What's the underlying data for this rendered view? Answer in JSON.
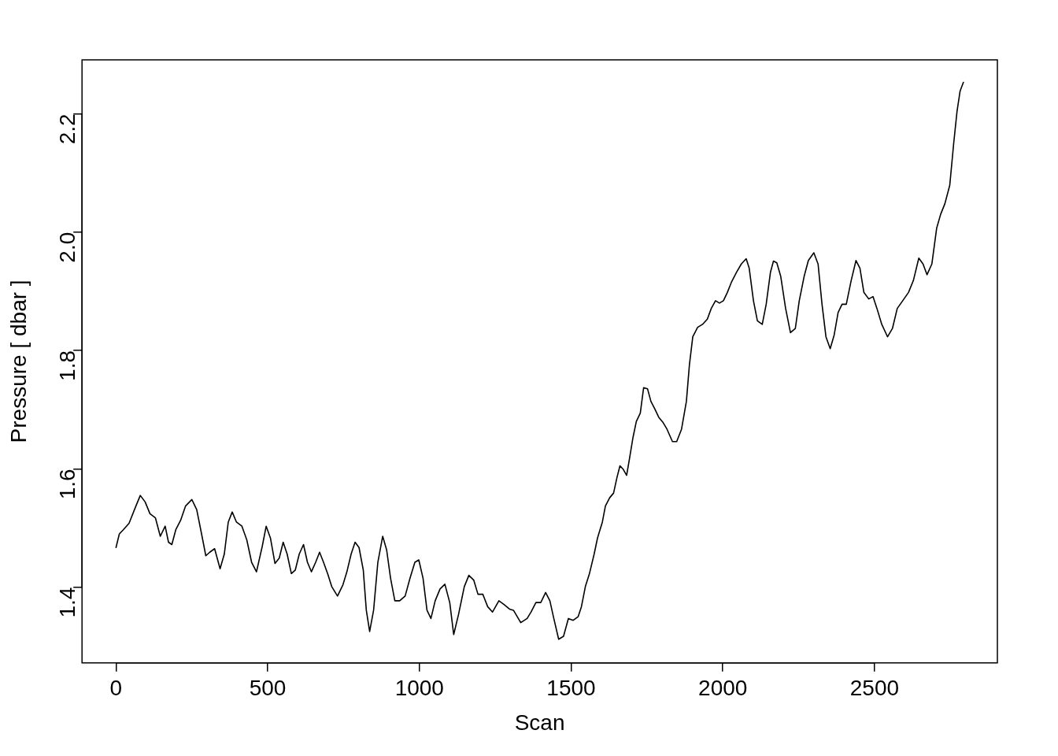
{
  "chart_data": {
    "type": "line",
    "xlabel": "Scan",
    "ylabel": "Pressure [ dbar ]",
    "color": "#000000",
    "marker": "none",
    "line_style": "solid",
    "grid": false,
    "legend": false,
    "x": [
      0,
      11,
      24,
      43,
      64,
      80,
      96,
      112,
      130,
      146,
      162,
      173,
      184,
      197,
      213,
      229,
      250,
      266,
      282,
      296,
      309,
      325,
      343,
      357,
      370,
      383,
      397,
      415,
      431,
      447,
      463,
      482,
      495,
      509,
      524,
      538,
      551,
      564,
      578,
      591,
      604,
      618,
      631,
      644,
      658,
      671,
      684,
      698,
      711,
      730,
      748,
      761,
      775,
      788,
      801,
      815,
      825,
      836,
      849,
      863,
      879,
      892,
      905,
      919,
      935,
      953,
      969,
      985,
      998,
      1012,
      1025,
      1038,
      1052,
      1068,
      1084,
      1100,
      1113,
      1129,
      1148,
      1163,
      1179,
      1193,
      1209,
      1225,
      1241,
      1262,
      1278,
      1297,
      1310,
      1334,
      1355,
      1368,
      1384,
      1400,
      1416,
      1430,
      1443,
      1459,
      1475,
      1491,
      1507,
      1523,
      1534,
      1547,
      1560,
      1576,
      1587,
      1603,
      1613,
      1627,
      1640,
      1651,
      1661,
      1672,
      1683,
      1693,
      1704,
      1715,
      1728,
      1739,
      1752,
      1763,
      1776,
      1789,
      1802,
      1816,
      1834,
      1848,
      1864,
      1880,
      1890,
      1901,
      1917,
      1933,
      1949,
      1962,
      1976,
      1989,
      2002,
      2015,
      2029,
      2045,
      2061,
      2077,
      2087,
      2101,
      2114,
      2130,
      2143,
      2157,
      2167,
      2178,
      2191,
      2207,
      2223,
      2239,
      2252,
      2268,
      2282,
      2300,
      2314,
      2327,
      2340,
      2354,
      2367,
      2380,
      2393,
      2407,
      2423,
      2439,
      2452,
      2465,
      2481,
      2495,
      2508,
      2524,
      2543,
      2559,
      2575,
      2593,
      2612,
      2628,
      2646,
      2660,
      2673,
      2689,
      2705,
      2718,
      2732,
      2748,
      2761,
      2772,
      2782,
      2793
    ],
    "values": [
      1.467,
      1.49,
      1.497,
      1.508,
      1.535,
      1.555,
      1.544,
      1.524,
      1.517,
      1.486,
      1.503,
      1.476,
      1.472,
      1.497,
      1.513,
      1.537,
      1.548,
      1.531,
      1.49,
      1.453,
      1.459,
      1.465,
      1.431,
      1.456,
      1.51,
      1.527,
      1.51,
      1.503,
      1.48,
      1.442,
      1.426,
      1.469,
      1.503,
      1.483,
      1.44,
      1.449,
      1.476,
      1.456,
      1.423,
      1.429,
      1.456,
      1.472,
      1.442,
      1.426,
      1.442,
      1.459,
      1.442,
      1.422,
      1.401,
      1.385,
      1.404,
      1.426,
      1.456,
      1.476,
      1.467,
      1.429,
      1.361,
      1.325,
      1.361,
      1.442,
      1.486,
      1.463,
      1.415,
      1.377,
      1.377,
      1.385,
      1.415,
      1.442,
      1.446,
      1.415,
      1.361,
      1.347,
      1.377,
      1.397,
      1.405,
      1.374,
      1.32,
      1.354,
      1.401,
      1.42,
      1.412,
      1.388,
      1.388,
      1.367,
      1.358,
      1.377,
      1.371,
      1.363,
      1.361,
      1.34,
      1.347,
      1.358,
      1.374,
      1.374,
      1.391,
      1.377,
      1.347,
      1.312,
      1.317,
      1.347,
      1.344,
      1.35,
      1.367,
      1.401,
      1.422,
      1.456,
      1.483,
      1.51,
      1.537,
      1.551,
      1.559,
      1.585,
      1.605,
      1.599,
      1.589,
      1.619,
      1.653,
      1.68,
      1.694,
      1.737,
      1.735,
      1.714,
      1.701,
      1.687,
      1.679,
      1.667,
      1.646,
      1.646,
      1.667,
      1.714,
      1.776,
      1.823,
      1.839,
      1.844,
      1.853,
      1.871,
      1.884,
      1.88,
      1.884,
      1.898,
      1.916,
      1.932,
      1.946,
      1.955,
      1.939,
      1.884,
      1.85,
      1.844,
      1.878,
      1.932,
      1.951,
      1.948,
      1.925,
      1.871,
      1.83,
      1.837,
      1.884,
      1.925,
      1.952,
      1.965,
      1.946,
      1.878,
      1.823,
      1.803,
      1.826,
      1.864,
      1.878,
      1.878,
      1.918,
      1.952,
      1.939,
      1.898,
      1.887,
      1.891,
      1.871,
      1.844,
      1.823,
      1.837,
      1.871,
      1.884,
      1.898,
      1.918,
      1.956,
      1.946,
      1.928,
      1.946,
      2.007,
      2.03,
      2.048,
      2.079,
      2.15,
      2.204,
      2.238,
      2.253
    ],
    "xlim": [
      -112,
      2905
    ],
    "ylim": [
      1.272,
      2.291
    ],
    "xticks": [
      0,
      500,
      1000,
      1500,
      2000,
      2500
    ],
    "yticks": [
      1.4,
      1.6,
      1.8,
      {
        "value": 2,
        "label": "2.0"
      },
      2.2
    ]
  }
}
